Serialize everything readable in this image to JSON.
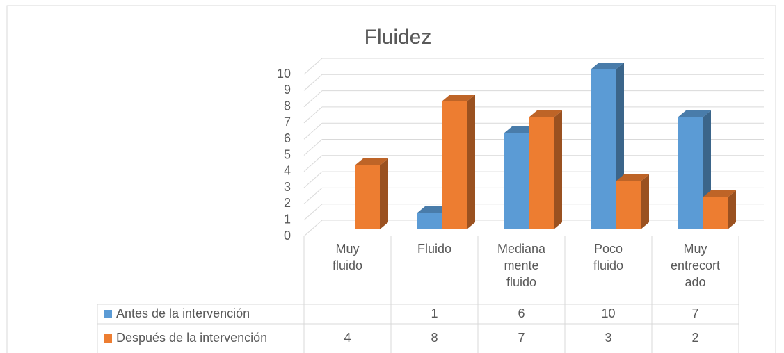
{
  "chart_data": {
    "type": "bar3d",
    "title": "Fluidez",
    "categories": [
      "Muy fluido",
      "Fluido",
      "Medianamente fluido",
      "Poco fluido",
      "Muy entrecortado"
    ],
    "series": [
      {
        "name": "Antes de la intervención",
        "color": "#5b9bd5",
        "values": [
          null,
          1,
          6,
          10,
          7
        ]
      },
      {
        "name": "Después de la intervención",
        "color": "#ed7d31",
        "values": [
          4,
          8,
          7,
          3,
          2
        ]
      }
    ],
    "ylim": [
      0,
      10
    ],
    "yticks": [
      0,
      1,
      2,
      3,
      4,
      5,
      6,
      7,
      8,
      9,
      10
    ],
    "grid": true,
    "data_table": true
  }
}
